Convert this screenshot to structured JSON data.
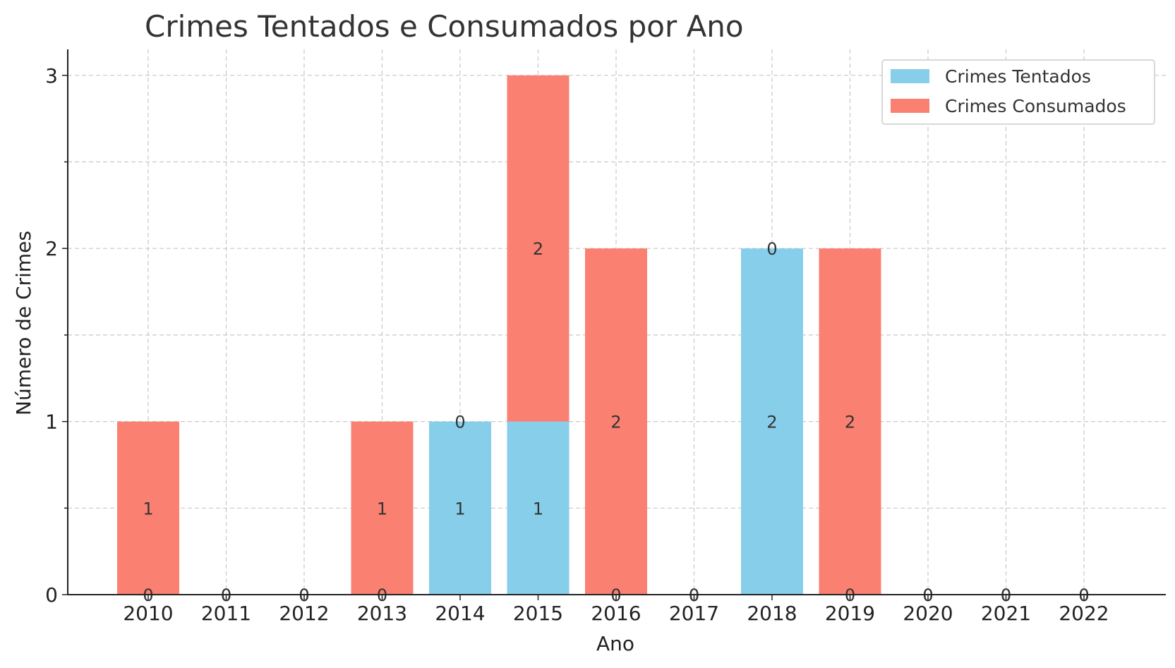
{
  "chart_data": {
    "type": "bar",
    "stacked": true,
    "title": "Crimes Tentados e Consumados por Ano",
    "xlabel": "Ano",
    "ylabel": "Número de Crimes",
    "categories": [
      "2010",
      "2011",
      "2012",
      "2013",
      "2014",
      "2015",
      "2016",
      "2017",
      "2018",
      "2019",
      "2020",
      "2021",
      "2022"
    ],
    "series": [
      {
        "name": "Crimes Tentados",
        "color": "#87CEEB",
        "values": [
          0,
          0,
          0,
          0,
          1,
          1,
          0,
          0,
          2,
          0,
          0,
          0,
          0
        ]
      },
      {
        "name": "Crimes Consumados",
        "color": "#FA8072",
        "values": [
          1,
          0,
          0,
          1,
          0,
          2,
          2,
          0,
          0,
          2,
          0,
          0,
          0
        ]
      }
    ],
    "ylim": [
      0,
      3.15
    ],
    "yticks": [
      0,
      1,
      2,
      3
    ],
    "grid": true,
    "legend_position": "top-right"
  }
}
